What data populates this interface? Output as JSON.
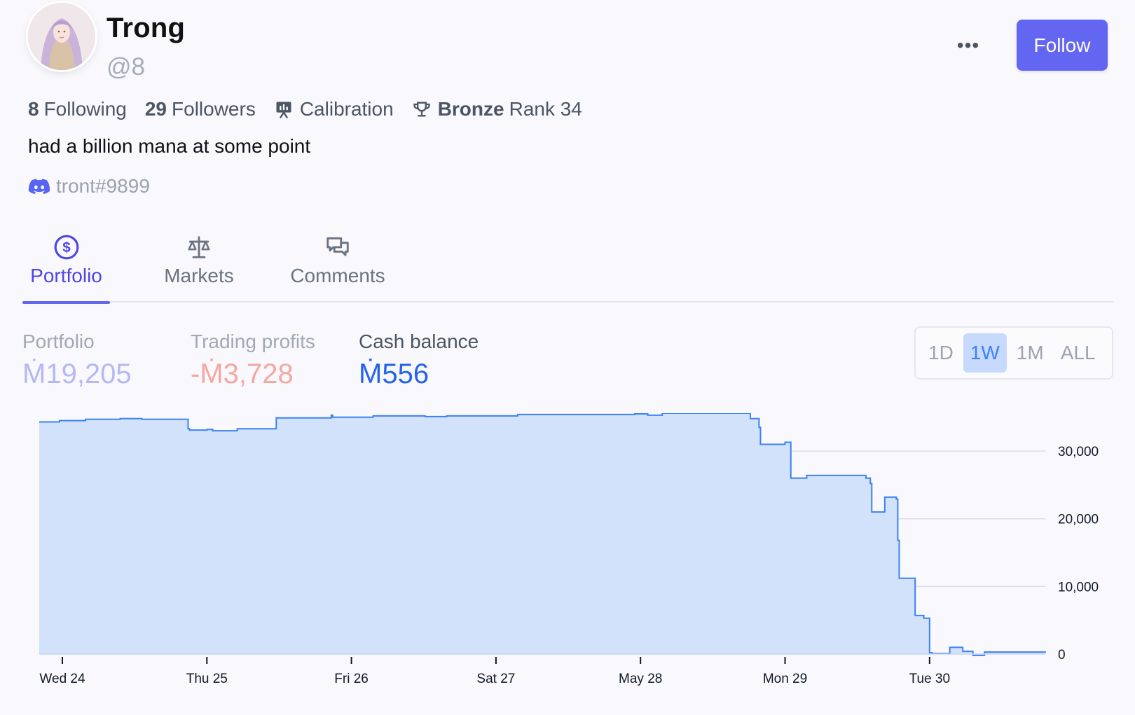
{
  "profile": {
    "name": "Trong",
    "handle": "@8",
    "bio": "had a billion mana at some point",
    "discord": "tront#9899"
  },
  "header": {
    "more_label": "•••",
    "follow_label": "Follow",
    "accent": "#6366f1"
  },
  "stats": {
    "following_count": "8",
    "following_label": "Following",
    "followers_count": "29",
    "followers_label": "Followers",
    "calibration_label": "Calibration",
    "league": "Bronze",
    "rank_label": "Rank 34"
  },
  "tabs": [
    {
      "label": "Portfolio",
      "icon": "dollar-circle-icon",
      "active": true
    },
    {
      "label": "Markets",
      "icon": "scale-icon",
      "active": false
    },
    {
      "label": "Comments",
      "icon": "chat-bubbles-icon",
      "active": false
    }
  ],
  "metrics": [
    {
      "label": "Portfolio",
      "value": "Ṁ19,205"
    },
    {
      "label": "Trading profits",
      "value": "-Ṁ3,728"
    },
    {
      "label": "Cash balance",
      "value": "Ṁ556"
    }
  ],
  "time_range": {
    "options": [
      "1D",
      "1W",
      "1M",
      "ALL"
    ],
    "selected": "1W"
  },
  "chart_data": {
    "type": "area",
    "title": "",
    "xlabel": "",
    "ylabel": "",
    "x_ticks": [
      "Wed 24",
      "Thu 25",
      "Fri 26",
      "Sat 27",
      "May 28",
      "Mon 29",
      "Tue 30"
    ],
    "y_ticks": [
      0,
      10000,
      20000,
      30000
    ],
    "y_tick_labels": [
      "0",
      "10,000",
      "20,000",
      "30,000"
    ],
    "ylim": [
      0,
      35600
    ],
    "xlim_days": [
      -0.16,
      6.8
    ],
    "grid": true,
    "line_color": "#3b82f6",
    "fill_color": "#d3e2fb",
    "series": [
      {
        "points": [
          [
            -0.16,
            34300
          ],
          [
            -0.02,
            34500
          ],
          [
            0.16,
            34700
          ],
          [
            0.4,
            34800
          ],
          [
            0.55,
            34700
          ],
          [
            0.86,
            34700
          ],
          [
            0.87,
            33300
          ],
          [
            0.88,
            33100
          ],
          [
            1.0,
            33200
          ],
          [
            1.04,
            33000
          ],
          [
            1.2,
            33000
          ],
          [
            1.21,
            33300
          ],
          [
            1.47,
            33300
          ],
          [
            1.48,
            34900
          ],
          [
            1.85,
            34900
          ],
          [
            1.86,
            35300
          ],
          [
            1.87,
            35000
          ],
          [
            2.14,
            35000
          ],
          [
            2.15,
            35200
          ],
          [
            2.5,
            35200
          ],
          [
            2.51,
            35100
          ],
          [
            2.65,
            35100
          ],
          [
            2.66,
            35200
          ],
          [
            3.14,
            35200
          ],
          [
            3.15,
            35400
          ],
          [
            3.95,
            35400
          ],
          [
            3.96,
            35500
          ],
          [
            4.04,
            35500
          ],
          [
            4.05,
            35300
          ],
          [
            4.14,
            35300
          ],
          [
            4.15,
            35600
          ],
          [
            4.75,
            35600
          ],
          [
            4.76,
            34800
          ],
          [
            4.81,
            34800
          ],
          [
            4.82,
            33500
          ],
          [
            4.83,
            31000
          ],
          [
            4.99,
            31000
          ],
          [
            5.0,
            31300
          ],
          [
            5.03,
            31300
          ],
          [
            5.04,
            26000
          ],
          [
            5.14,
            26000
          ],
          [
            5.15,
            26400
          ],
          [
            5.55,
            26400
          ],
          [
            5.56,
            26000
          ],
          [
            5.59,
            25200
          ],
          [
            5.6,
            21000
          ],
          [
            5.68,
            21000
          ],
          [
            5.69,
            23200
          ],
          [
            5.75,
            23200
          ],
          [
            5.77,
            22900
          ],
          [
            5.78,
            16800
          ],
          [
            5.79,
            11200
          ],
          [
            5.89,
            11200
          ],
          [
            5.9,
            5700
          ],
          [
            5.95,
            5700
          ],
          [
            5.96,
            5300
          ],
          [
            5.99,
            5300
          ],
          [
            6.0,
            200
          ],
          [
            6.02,
            80
          ],
          [
            6.13,
            80
          ],
          [
            6.14,
            1000
          ],
          [
            6.22,
            1000
          ],
          [
            6.23,
            400
          ],
          [
            6.29,
            400
          ],
          [
            6.3,
            -200
          ],
          [
            6.36,
            -200
          ],
          [
            6.38,
            300
          ],
          [
            6.8,
            400
          ]
        ]
      }
    ]
  }
}
